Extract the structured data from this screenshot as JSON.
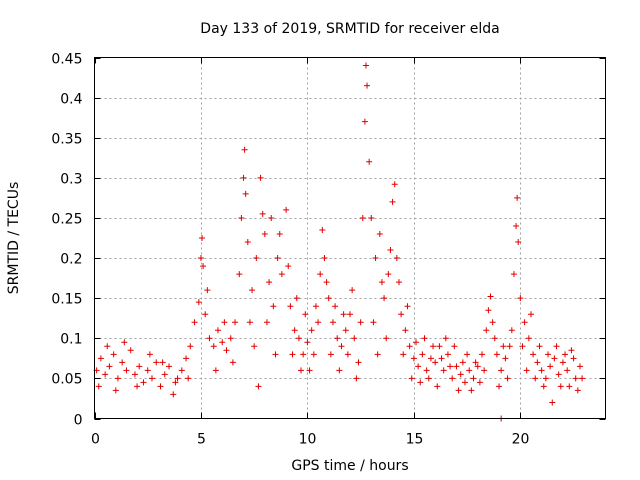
{
  "chart_data": {
    "type": "scatter",
    "title": "Day 133 of 2019, SRMTID for receiver elda",
    "xlabel": "GPS time / hours",
    "ylabel": "SRMTID / TECUs",
    "xlim": [
      0,
      24
    ],
    "ylim": [
      0,
      0.45
    ],
    "grid": true,
    "x_ticks": [
      0,
      5,
      10,
      15,
      20
    ],
    "x_tick_labels": [
      "0",
      "5",
      "10",
      "15",
      "20"
    ],
    "y_ticks": [
      0,
      0.05,
      0.1,
      0.15,
      0.2,
      0.25,
      0.3,
      0.35,
      0.4,
      0.45
    ],
    "y_tick_labels": [
      "0",
      "0.05",
      "0.1",
      "0.15",
      "0.2",
      "0.25",
      "0.3",
      "0.35",
      "0.4",
      "0.45"
    ],
    "series_color": "#e00000",
    "marker": "plus",
    "series": [
      {
        "name": "SRMTID",
        "points": [
          [
            0.1,
            0.06
          ],
          [
            0.3,
            0.075
          ],
          [
            0.5,
            0.055
          ],
          [
            0.7,
            0.065
          ],
          [
            0.9,
            0.08
          ],
          [
            1.1,
            0.05
          ],
          [
            1.3,
            0.07
          ],
          [
            1.5,
            0.06
          ],
          [
            1.7,
            0.085
          ],
          [
            1.9,
            0.055
          ],
          [
            2.1,
            0.065
          ],
          [
            2.3,
            0.045
          ],
          [
            2.5,
            0.06
          ],
          [
            2.7,
            0.05
          ],
          [
            2.9,
            0.07
          ],
          [
            3.1,
            0.04
          ],
          [
            3.3,
            0.055
          ],
          [
            3.5,
            0.065
          ],
          [
            3.7,
            0.03
          ],
          [
            3.9,
            0.05
          ],
          [
            4.1,
            0.06
          ],
          [
            4.3,
            0.075
          ],
          [
            4.5,
            0.09
          ],
          [
            4.7,
            0.12
          ],
          [
            4.9,
            0.145
          ],
          [
            5.0,
            0.2
          ],
          [
            5.05,
            0.225
          ],
          [
            5.1,
            0.19
          ],
          [
            5.2,
            0.13
          ],
          [
            5.4,
            0.1
          ],
          [
            5.6,
            0.09
          ],
          [
            5.8,
            0.11
          ],
          [
            6.0,
            0.095
          ],
          [
            6.2,
            0.085
          ],
          [
            6.4,
            0.1
          ],
          [
            6.6,
            0.12
          ],
          [
            6.8,
            0.18
          ],
          [
            6.9,
            0.25
          ],
          [
            7.0,
            0.3
          ],
          [
            7.05,
            0.335
          ],
          [
            7.1,
            0.28
          ],
          [
            7.2,
            0.22
          ],
          [
            7.4,
            0.16
          ],
          [
            7.6,
            0.2
          ],
          [
            7.8,
            0.3
          ],
          [
            7.9,
            0.255
          ],
          [
            8.0,
            0.23
          ],
          [
            8.2,
            0.17
          ],
          [
            8.4,
            0.14
          ],
          [
            8.6,
            0.2
          ],
          [
            8.8,
            0.18
          ],
          [
            9.0,
            0.26
          ],
          [
            9.2,
            0.14
          ],
          [
            9.4,
            0.11
          ],
          [
            9.6,
            0.1
          ],
          [
            9.8,
            0.08
          ],
          [
            10.0,
            0.095
          ],
          [
            10.2,
            0.11
          ],
          [
            10.4,
            0.14
          ],
          [
            10.6,
            0.18
          ],
          [
            10.7,
            0.235
          ],
          [
            10.8,
            0.2
          ],
          [
            11.0,
            0.15
          ],
          [
            11.2,
            0.12
          ],
          [
            11.4,
            0.1
          ],
          [
            11.6,
            0.09
          ],
          [
            11.8,
            0.11
          ],
          [
            12.0,
            0.13
          ],
          [
            12.2,
            0.1
          ],
          [
            12.4,
            0.07
          ],
          [
            12.6,
            0.25
          ],
          [
            12.7,
            0.37
          ],
          [
            12.75,
            0.44
          ],
          [
            12.8,
            0.415
          ],
          [
            12.9,
            0.32
          ],
          [
            13.0,
            0.25
          ],
          [
            13.2,
            0.2
          ],
          [
            13.4,
            0.23
          ],
          [
            13.6,
            0.15
          ],
          [
            13.8,
            0.18
          ],
          [
            14.0,
            0.27
          ],
          [
            14.1,
            0.292
          ],
          [
            14.2,
            0.2
          ],
          [
            14.4,
            0.13
          ],
          [
            14.6,
            0.11
          ],
          [
            14.8,
            0.09
          ],
          [
            15.0,
            0.075
          ],
          [
            15.2,
            0.065
          ],
          [
            15.4,
            0.08
          ],
          [
            15.6,
            0.06
          ],
          [
            15.8,
            0.075
          ],
          [
            16.0,
            0.07
          ],
          [
            16.2,
            0.09
          ],
          [
            16.4,
            0.06
          ],
          [
            16.6,
            0.08
          ],
          [
            16.8,
            0.05
          ],
          [
            17.0,
            0.065
          ],
          [
            17.2,
            0.055
          ],
          [
            17.4,
            0.045
          ],
          [
            17.6,
            0.06
          ],
          [
            17.8,
            0.05
          ],
          [
            18.0,
            0.065
          ],
          [
            18.2,
            0.08
          ],
          [
            18.4,
            0.11
          ],
          [
            18.5,
            0.135
          ],
          [
            18.6,
            0.152
          ],
          [
            18.7,
            0.12
          ],
          [
            18.9,
            0.08
          ],
          [
            19.1,
            0.06
          ],
          [
            19.3,
            0.075
          ],
          [
            19.5,
            0.09
          ],
          [
            19.7,
            0.18
          ],
          [
            19.8,
            0.24
          ],
          [
            19.85,
            0.275
          ],
          [
            19.9,
            0.22
          ],
          [
            20.0,
            0.15
          ],
          [
            20.2,
            0.12
          ],
          [
            20.4,
            0.1
          ],
          [
            20.6,
            0.08
          ],
          [
            20.8,
            0.07
          ],
          [
            21.0,
            0.06
          ],
          [
            21.2,
            0.05
          ],
          [
            21.4,
            0.065
          ],
          [
            21.6,
            0.075
          ],
          [
            21.8,
            0.055
          ],
          [
            22.0,
            0.07
          ],
          [
            22.2,
            0.06
          ],
          [
            22.4,
            0.085
          ],
          [
            22.6,
            0.05
          ],
          [
            22.8,
            0.065
          ],
          [
            0.2,
            0.04
          ],
          [
            0.6,
            0.09
          ],
          [
            1.0,
            0.035
          ],
          [
            1.4,
            0.095
          ],
          [
            2.0,
            0.04
          ],
          [
            2.6,
            0.08
          ],
          [
            3.2,
            0.07
          ],
          [
            3.8,
            0.045
          ],
          [
            4.4,
            0.05
          ],
          [
            5.3,
            0.16
          ],
          [
            5.7,
            0.06
          ],
          [
            6.1,
            0.12
          ],
          [
            6.5,
            0.07
          ],
          [
            7.3,
            0.12
          ],
          [
            7.5,
            0.09
          ],
          [
            7.7,
            0.04
          ],
          [
            8.1,
            0.12
          ],
          [
            8.3,
            0.25
          ],
          [
            8.5,
            0.08
          ],
          [
            8.7,
            0.23
          ],
          [
            9.1,
            0.19
          ],
          [
            9.3,
            0.08
          ],
          [
            9.5,
            0.15
          ],
          [
            9.7,
            0.06
          ],
          [
            9.9,
            0.13
          ],
          [
            10.1,
            0.06
          ],
          [
            10.3,
            0.08
          ],
          [
            10.5,
            0.12
          ],
          [
            10.9,
            0.17
          ],
          [
            11.1,
            0.08
          ],
          [
            11.3,
            0.14
          ],
          [
            11.5,
            0.06
          ],
          [
            11.7,
            0.13
          ],
          [
            11.9,
            0.08
          ],
          [
            12.1,
            0.16
          ],
          [
            12.3,
            0.05
          ],
          [
            12.5,
            0.12
          ],
          [
            13.1,
            0.12
          ],
          [
            13.3,
            0.08
          ],
          [
            13.5,
            0.17
          ],
          [
            13.7,
            0.1
          ],
          [
            13.9,
            0.21
          ],
          [
            14.3,
            0.17
          ],
          [
            14.5,
            0.08
          ],
          [
            14.7,
            0.14
          ],
          [
            14.9,
            0.05
          ],
          [
            15.1,
            0.095
          ],
          [
            15.3,
            0.045
          ],
          [
            15.5,
            0.1
          ],
          [
            15.7,
            0.05
          ],
          [
            15.9,
            0.09
          ],
          [
            16.1,
            0.04
          ],
          [
            16.3,
            0.075
          ],
          [
            16.5,
            0.1
          ],
          [
            16.7,
            0.065
          ],
          [
            16.9,
            0.09
          ],
          [
            17.1,
            0.035
          ],
          [
            17.3,
            0.07
          ],
          [
            17.5,
            0.08
          ],
          [
            17.7,
            0.035
          ],
          [
            17.9,
            0.07
          ],
          [
            18.1,
            0.045
          ],
          [
            18.3,
            0.06
          ],
          [
            18.8,
            0.1
          ],
          [
            19.0,
            0.04
          ],
          [
            19.2,
            0.09
          ],
          [
            19.4,
            0.05
          ],
          [
            19.6,
            0.11
          ],
          [
            20.1,
            0.09
          ],
          [
            20.3,
            0.06
          ],
          [
            20.5,
            0.13
          ],
          [
            20.7,
            0.05
          ],
          [
            20.9,
            0.09
          ],
          [
            21.1,
            0.04
          ],
          [
            21.3,
            0.08
          ],
          [
            21.5,
            0.02
          ],
          [
            21.7,
            0.09
          ],
          [
            21.9,
            0.04
          ],
          [
            22.1,
            0.08
          ],
          [
            22.3,
            0.04
          ],
          [
            22.5,
            0.075
          ],
          [
            22.7,
            0.035
          ],
          [
            22.9,
            0.05
          ],
          [
            19.1,
            0.0
          ]
        ]
      }
    ]
  }
}
